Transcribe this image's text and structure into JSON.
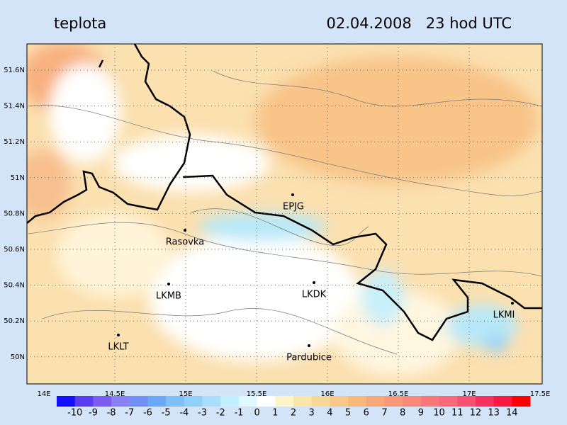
{
  "header": {
    "title": "teplota",
    "timestamp": "02.04.2008   23 hod UTC"
  },
  "map": {
    "lat_labels": [
      "51.6N",
      "51.4N",
      "51.2N",
      "51N",
      "50.8N",
      "50.6N",
      "50.4N",
      "50.2N",
      "50N"
    ],
    "lon_labels": [
      "14E",
      "14.5E",
      "15E",
      "15.5E",
      "16E",
      "16.5E",
      "17E",
      "17.5E"
    ],
    "stations": [
      {
        "label": "EPJG"
      },
      {
        "label": "Rasovka"
      },
      {
        "label": "LKMB"
      },
      {
        "label": "LKDK"
      },
      {
        "label": "LKMI"
      },
      {
        "label": "LKLT"
      },
      {
        "label": "Pardubice"
      }
    ]
  },
  "colorbar": {
    "labels": [
      -10,
      -9,
      -8,
      -7,
      -6,
      -5,
      -4,
      -3,
      -2,
      -1,
      0,
      1,
      2,
      3,
      4,
      5,
      6,
      7,
      8,
      9,
      10,
      11,
      12,
      13,
      14
    ],
    "colors": [
      "#1010ff",
      "#5a3cf0",
      "#7a5cf0",
      "#8a80f5",
      "#7090f5",
      "#6aa8f8",
      "#80bff8",
      "#90d0fa",
      "#a8e0fc",
      "#c0f0ff",
      "#e0f8ff",
      "#ffffff",
      "#fff4c8",
      "#fbe6a8",
      "#f8d898",
      "#f8c888",
      "#f8b878",
      "#f8a878",
      "#f89878",
      "#f88878",
      "#f87878",
      "#f86878",
      "#f85070",
      "#f83060",
      "#f81840",
      "#ff0000"
    ]
  }
}
